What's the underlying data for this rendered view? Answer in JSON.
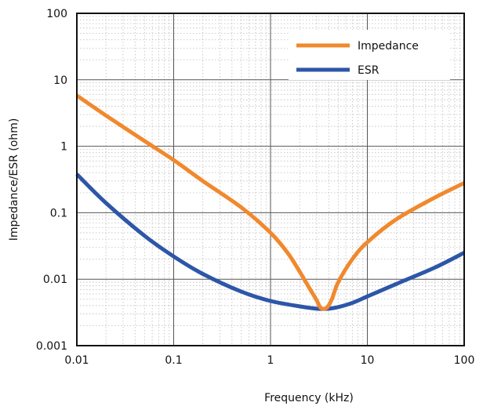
{
  "chart_data": {
    "type": "line",
    "title": "",
    "xlabel": "Frequency (kHz)",
    "ylabel": "Impedance/ESR (ohm)",
    "xscale": "log",
    "yscale": "log",
    "xlim": [
      0.01,
      100
    ],
    "ylim": [
      0.001,
      100
    ],
    "x_ticks": [
      0.01,
      0.1,
      1,
      10,
      100
    ],
    "x_tick_labels": [
      "0.01",
      "0.1",
      "1",
      "10",
      "100"
    ],
    "y_ticks": [
      0.001,
      0.01,
      0.1,
      1,
      10,
      100
    ],
    "y_tick_labels": [
      "0.001",
      "0.01",
      "0.1",
      "1",
      "10",
      "100"
    ],
    "grid": true,
    "legend_position": "top-right",
    "series": [
      {
        "name": "Impedance",
        "color": "#f0892e",
        "points": [
          [
            0.01,
            5.8
          ],
          [
            0.02,
            2.9
          ],
          [
            0.05,
            1.2
          ],
          [
            0.1,
            0.62
          ],
          [
            0.2,
            0.3
          ],
          [
            0.5,
            0.12
          ],
          [
            1,
            0.05
          ],
          [
            1.5,
            0.025
          ],
          [
            2,
            0.013
          ],
          [
            2.5,
            0.0075
          ],
          [
            3,
            0.0048
          ],
          [
            3.3,
            0.0037
          ],
          [
            3.8,
            0.0037
          ],
          [
            4.3,
            0.005
          ],
          [
            5,
            0.009
          ],
          [
            7,
            0.02
          ],
          [
            10,
            0.036
          ],
          [
            20,
            0.08
          ],
          [
            50,
            0.17
          ],
          [
            100,
            0.28
          ]
        ]
      },
      {
        "name": "ESR",
        "color": "#2d56a8",
        "points": [
          [
            0.01,
            0.38
          ],
          [
            0.02,
            0.14
          ],
          [
            0.05,
            0.045
          ],
          [
            0.1,
            0.022
          ],
          [
            0.2,
            0.012
          ],
          [
            0.5,
            0.0065
          ],
          [
            1,
            0.0047
          ],
          [
            2,
            0.0039
          ],
          [
            3,
            0.0036
          ],
          [
            4,
            0.0036
          ],
          [
            5,
            0.0038
          ],
          [
            7,
            0.0044
          ],
          [
            10,
            0.0055
          ],
          [
            20,
            0.0085
          ],
          [
            50,
            0.015
          ],
          [
            100,
            0.025
          ]
        ]
      }
    ]
  }
}
